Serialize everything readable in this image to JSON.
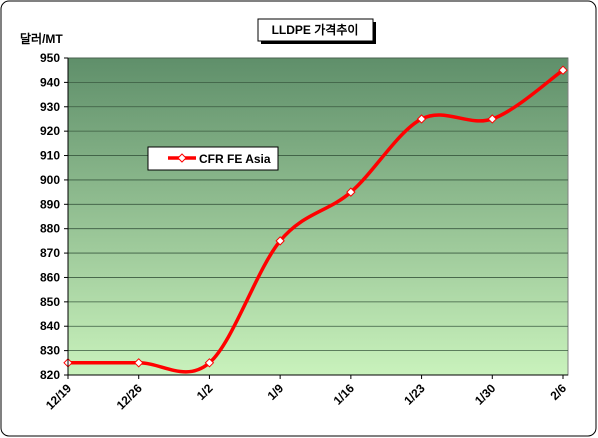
{
  "chart_data": {
    "type": "line",
    "title": "LLDPE 가격추이",
    "y_label": "달러/MT",
    "categories": [
      "12/19",
      "12/26",
      "1/2",
      "1/9",
      "1/16",
      "1/23",
      "1/30",
      "2/6"
    ],
    "series": [
      {
        "name": "CFR FE Asia",
        "color": "#ff0000",
        "values": [
          825,
          825,
          825,
          875,
          895,
          925,
          925,
          945
        ]
      }
    ],
    "ylim": [
      820,
      950
    ],
    "yticks": [
      820,
      830,
      840,
      850,
      860,
      870,
      880,
      890,
      900,
      910,
      920,
      930,
      940,
      950
    ],
    "grid": true,
    "smooth": true
  }
}
